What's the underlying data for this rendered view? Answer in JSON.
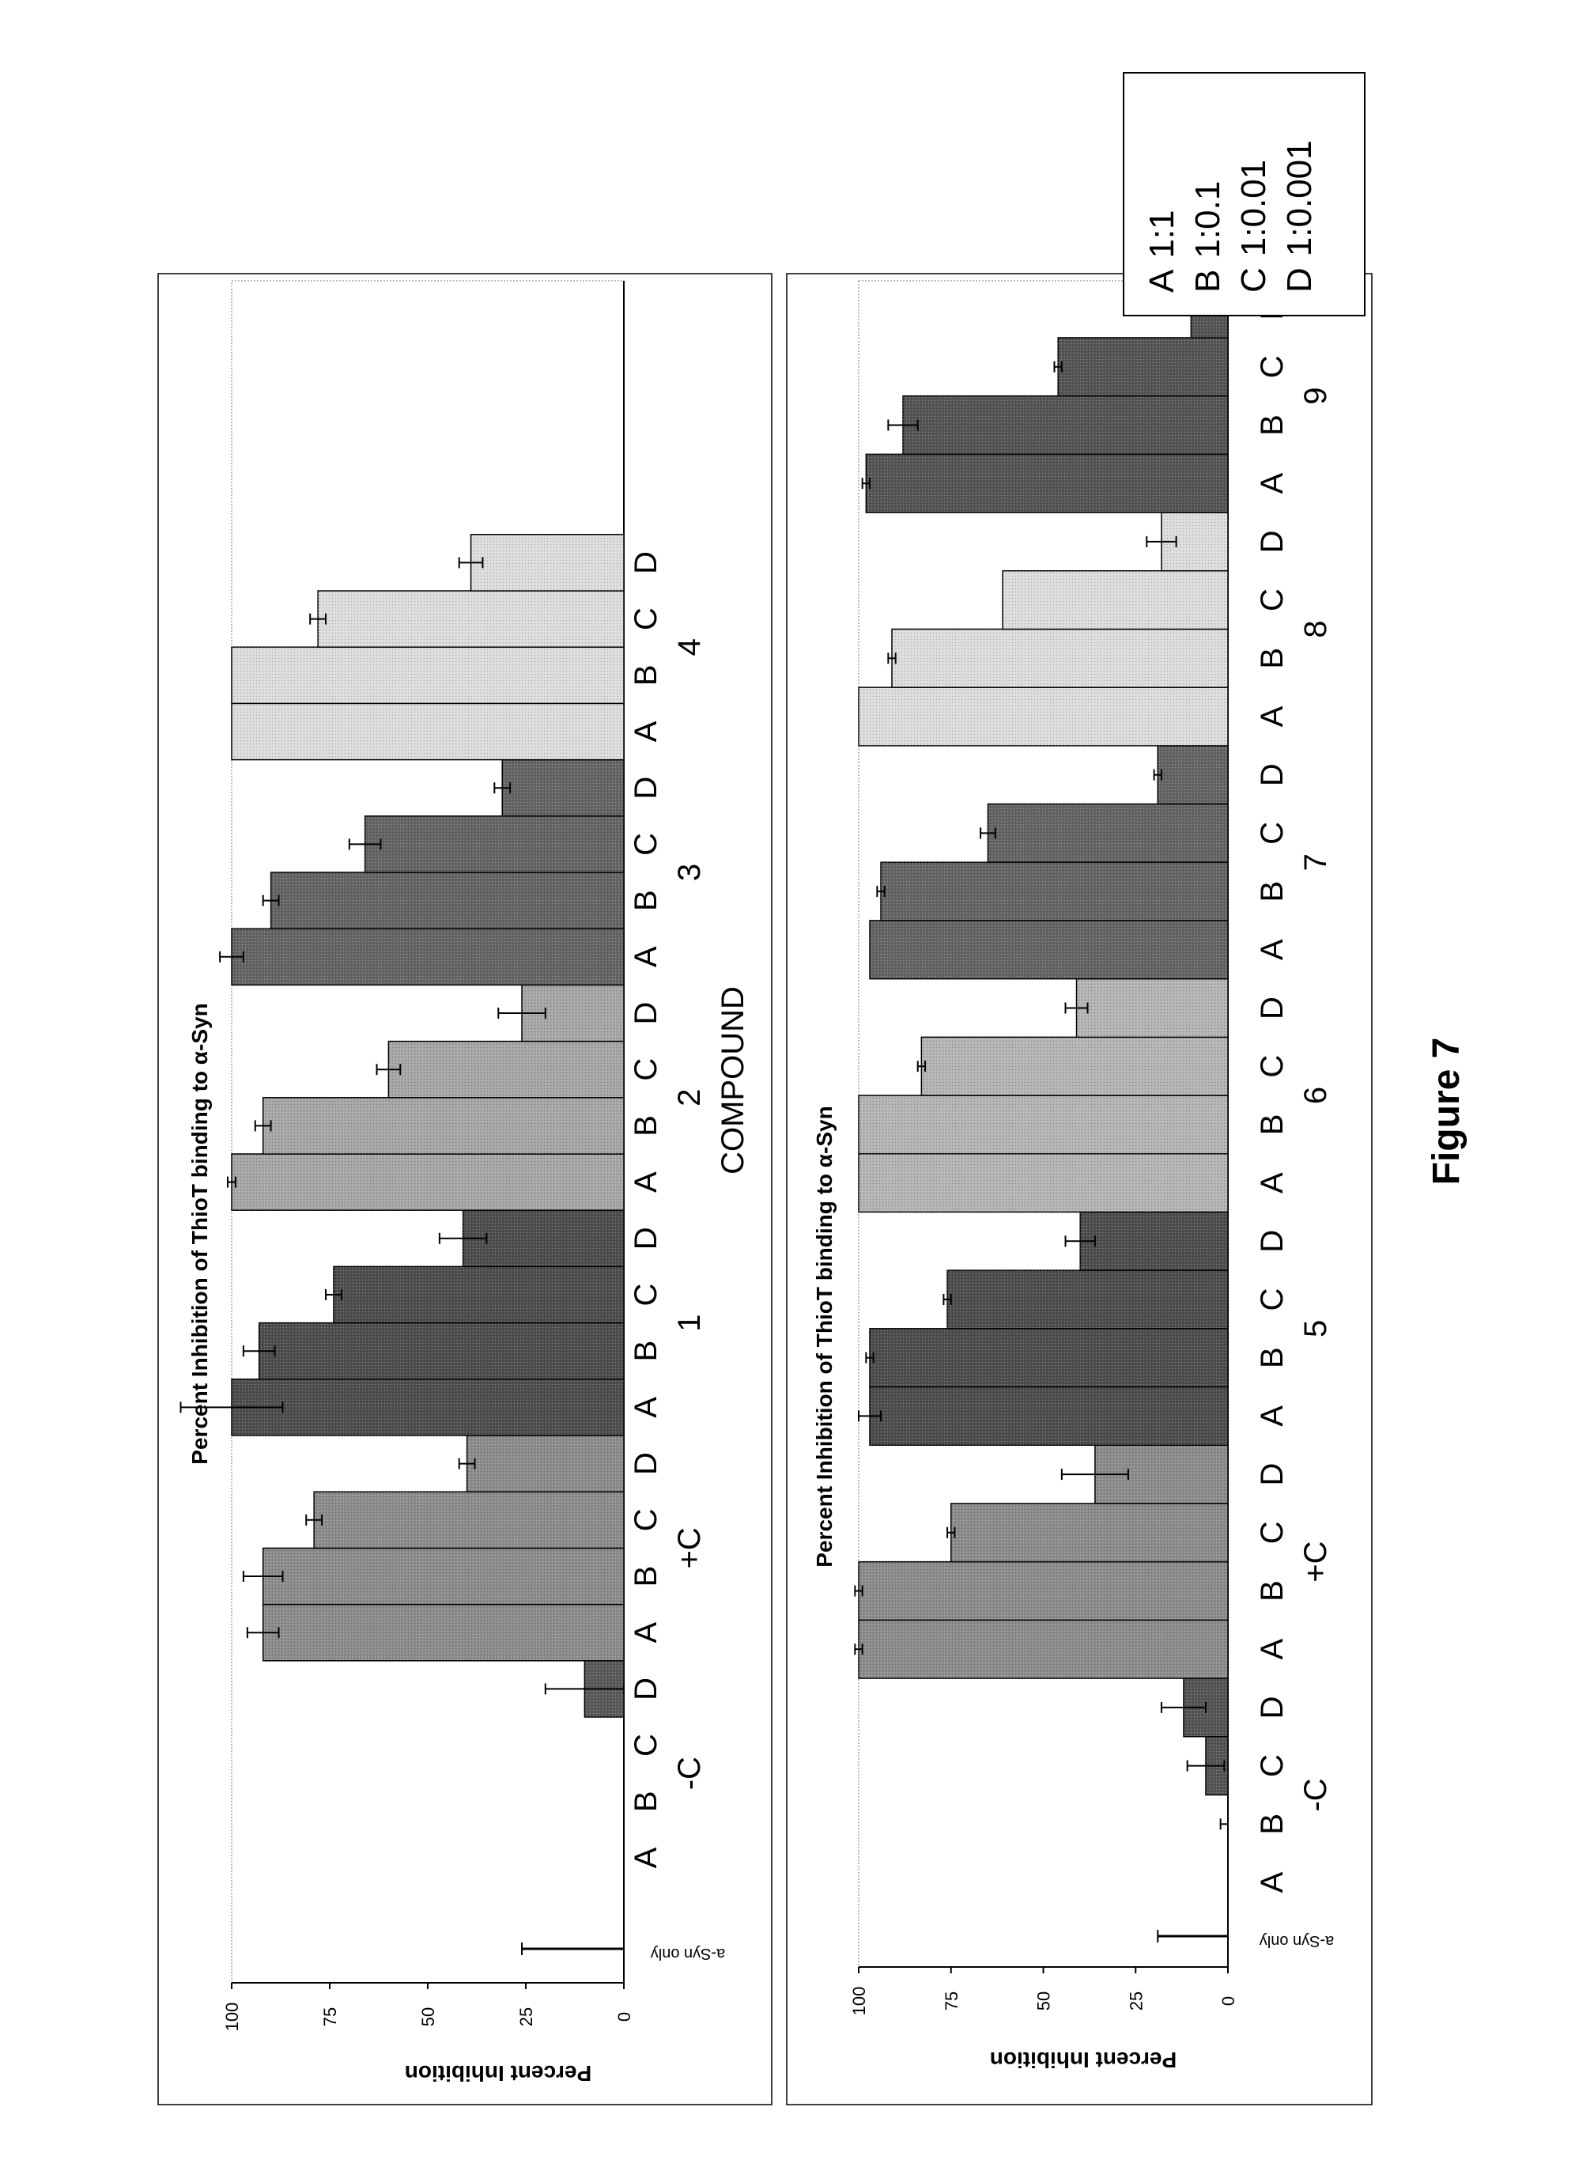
{
  "figure_label": "Figure 7",
  "legend": {
    "entries": [
      {
        "key": "A",
        "ratio": "1:1"
      },
      {
        "key": "B",
        "ratio": "1:0.1"
      },
      {
        "key": "C",
        "ratio": "1:0.01"
      },
      {
        "key": "D",
        "ratio": "1:0.001"
      }
    ]
  },
  "chart_data": [
    {
      "type": "bar",
      "title": "Percent Inhibition of ThioT binding to α-Syn",
      "xlabel": "COMPOUND",
      "ylabel": "Percent Inhibition",
      "ylim": [
        0,
        100
      ],
      "yticks": [
        "0",
        "25",
        "50",
        "75",
        "100"
      ],
      "control_label": "a-Syn only",
      "control": {
        "value": 0,
        "error": 26
      },
      "subcategories": [
        "A",
        "B",
        "C",
        "D"
      ],
      "groups": [
        {
          "name": "-C",
          "color": "#5a5a5a",
          "values": [
            0,
            0,
            0,
            10
          ],
          "errors": [
            0,
            0,
            0,
            10
          ]
        },
        {
          "name": "+C",
          "color": "#8c8c8c",
          "values": [
            92,
            92,
            79,
            40
          ],
          "errors": [
            4,
            5,
            2,
            2
          ]
        },
        {
          "name": "1",
          "color": "#4e4e4e",
          "values": [
            100,
            93,
            74,
            41
          ],
          "errors": [
            13,
            4,
            2,
            6
          ]
        },
        {
          "name": "2",
          "color": "#a6a6a6",
          "values": [
            100,
            92,
            60,
            26
          ],
          "errors": [
            1,
            2,
            3,
            6
          ]
        },
        {
          "name": "3",
          "color": "#656565",
          "values": [
            100,
            90,
            66,
            31
          ],
          "errors": [
            3,
            2,
            4,
            2
          ]
        },
        {
          "name": "4",
          "color": "#dcdcdc",
          "values": [
            100,
            100,
            78,
            39
          ],
          "errors": [
            0,
            0,
            2,
            3
          ]
        }
      ]
    },
    {
      "type": "bar",
      "title": "Percent Inhibition of ThioT binding to α-Syn",
      "ylabel": "Percent Inhibition",
      "ylim": [
        0,
        100
      ],
      "yticks": [
        "0",
        "25",
        "50",
        "75",
        "100"
      ],
      "control_label": "a-Syn only",
      "control": {
        "value": 0,
        "error": 19
      },
      "subcategories": [
        "A",
        "B",
        "C",
        "D"
      ],
      "groups": [
        {
          "name": "-C",
          "color": "#555555",
          "values": [
            0,
            0,
            6,
            12
          ],
          "errors": [
            0,
            2,
            5,
            6
          ]
        },
        {
          "name": "+C",
          "color": "#8c8c8c",
          "values": [
            100,
            100,
            75,
            36
          ],
          "errors": [
            1,
            1,
            1,
            9
          ]
        },
        {
          "name": "5",
          "color": "#4e4e4e",
          "values": [
            97,
            97,
            76,
            40
          ],
          "errors": [
            3,
            1,
            1,
            4
          ]
        },
        {
          "name": "6",
          "color": "#b4b4b4",
          "values": [
            100,
            100,
            83,
            41
          ],
          "errors": [
            0,
            0,
            1,
            3
          ]
        },
        {
          "name": "7",
          "color": "#656565",
          "values": [
            97,
            94,
            65,
            19
          ],
          "errors": [
            0,
            1,
            2,
            1
          ]
        },
        {
          "name": "8",
          "color": "#dcdcdc",
          "values": [
            100,
            91,
            61,
            18
          ],
          "errors": [
            0,
            1,
            0,
            4
          ]
        },
        {
          "name": "9",
          "color": "#555555",
          "values": [
            98,
            88,
            46,
            10
          ],
          "errors": [
            1,
            4,
            1,
            7
          ]
        }
      ]
    }
  ]
}
